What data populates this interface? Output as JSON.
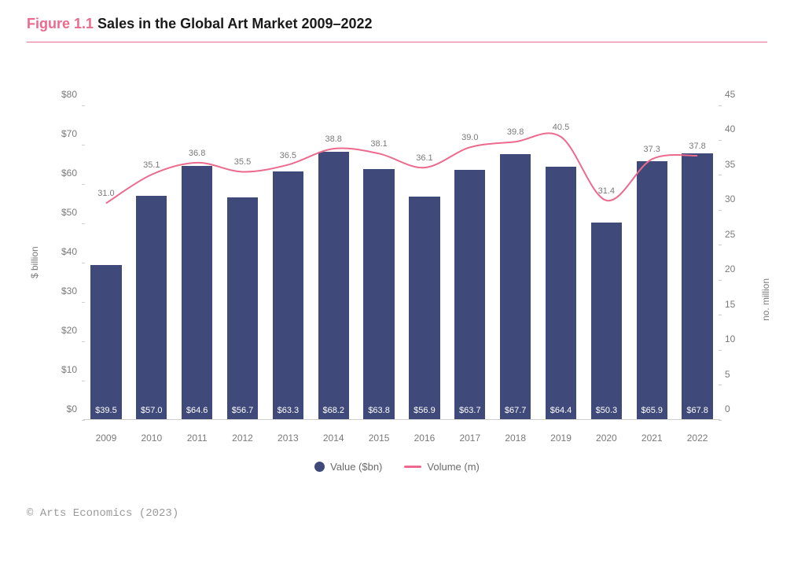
{
  "header": {
    "figure_label": "Figure 1.1",
    "title": "Sales in the Global Art Market 2009–2022",
    "figure_label_color": "#ec6a8e",
    "title_color": "#1a1a1a",
    "underline_color": "#ec6a8e",
    "fontsize": 18
  },
  "chart": {
    "type": "bar+line",
    "background_color": "#ffffff",
    "years": [
      "2009",
      "2010",
      "2011",
      "2012",
      "2013",
      "2014",
      "2015",
      "2016",
      "2017",
      "2018",
      "2019",
      "2020",
      "2021",
      "2022"
    ],
    "value_bn": [
      39.5,
      57.0,
      64.6,
      56.7,
      63.3,
      68.2,
      63.8,
      56.9,
      63.7,
      67.7,
      64.4,
      50.3,
      65.9,
      67.8
    ],
    "value_labels": [
      "$39.5",
      "$57.0",
      "$64.6",
      "$56.7",
      "$63.3",
      "$68.2",
      "$63.8",
      "$56.9",
      "$63.7",
      "$67.7",
      "$64.4",
      "$50.3",
      "$65.9",
      "$67.8"
    ],
    "volume_m": [
      31.0,
      35.1,
      36.8,
      35.5,
      36.5,
      38.8,
      38.1,
      36.1,
      39.0,
      39.8,
      40.5,
      31.4,
      37.3,
      37.8
    ],
    "volume_labels": [
      "31.0",
      "35.1",
      "36.8",
      "35.5",
      "36.5",
      "38.8",
      "38.1",
      "36.1",
      "39.0",
      "39.8",
      "40.5",
      "31.4",
      "37.3",
      "37.8"
    ],
    "bar_color": "#3f4a7a",
    "bar_label_color": "#ffffff",
    "line_color": "#ec6a8e",
    "line_width": 2,
    "volume_label_color": "#7a7a7a",
    "axis_text_color": "#7a7a7a",
    "axis_line_color": "#cfcfcf",
    "left_axis": {
      "label": "$ billion",
      "min": 0,
      "max": 80,
      "step": 10,
      "ticks": [
        "$0",
        "$10",
        "$20",
        "$30",
        "$40",
        "$50",
        "$60",
        "$70",
        "$80"
      ]
    },
    "right_axis": {
      "label": "no. million",
      "min": 0,
      "max": 45,
      "step": 5,
      "ticks": [
        "0",
        "5",
        "10",
        "15",
        "20",
        "25",
        "30",
        "35",
        "40",
        "45"
      ]
    },
    "tick_fontsize": 12,
    "data_label_fontsize": 11,
    "bar_width_ratio": 0.68
  },
  "legend": {
    "value_label": "Value ($bn)",
    "volume_label": "Volume (m)",
    "text_color": "#6a6a6a",
    "bar_swatch_color": "#3f4a7a",
    "line_swatch_color": "#ec6a8e"
  },
  "credit": {
    "text": "© Arts Economics (2023)",
    "color": "#9a9a9a",
    "font": "monospace"
  }
}
